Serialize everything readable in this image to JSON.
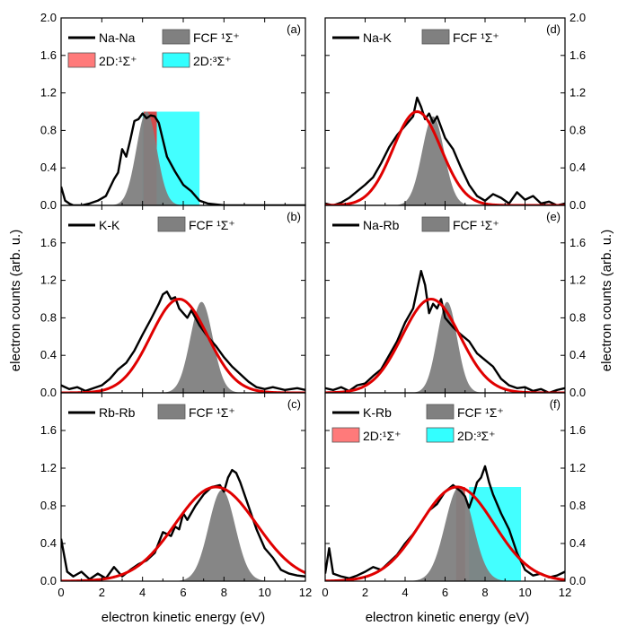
{
  "figure": {
    "xlabel": "electron kinetic energy (eV)",
    "ylabel": "electron counts (arb. u.)"
  },
  "chart_data": [
    {
      "type": "line",
      "panel_label": "(a)",
      "xlim": [
        0,
        12
      ],
      "ylim": [
        0,
        2.0
      ],
      "xticks": [
        "0",
        "2",
        "4",
        "6",
        "8",
        "10",
        "12"
      ],
      "yticks": [
        "0.0",
        "0.4",
        "0.8",
        "1.2",
        "1.6",
        "2.0"
      ],
      "ytick_side": "left",
      "legend": [
        {
          "name": "Na-Na",
          "style": "line",
          "color": "#000000"
        },
        {
          "name": "FCF ¹Σ⁺",
          "style": "box",
          "color": "#808080"
        },
        {
          "name": "2D:¹Σ⁺",
          "style": "box",
          "color": "#ff7a7a"
        },
        {
          "name": "2D:³Σ⁺",
          "style": "box",
          "color": "#33ffff"
        }
      ],
      "series": [
        {
          "name": "Na-Na",
          "kind": "line",
          "color": "#000000",
          "x": [
            0,
            0.2,
            0.4,
            0.6,
            1.0,
            1.4,
            1.8,
            2.2,
            2.6,
            2.8,
            3.0,
            3.2,
            3.4,
            3.6,
            3.8,
            4.0,
            4.2,
            4.4,
            4.6,
            4.8,
            5.0,
            5.2,
            5.6,
            6.0,
            6.4,
            6.8,
            7.2,
            8.0,
            9.0,
            10.0,
            11.0,
            12.0
          ],
          "y": [
            0.2,
            0.05,
            0.02,
            0.0,
            0.0,
            0.02,
            0.05,
            0.1,
            0.28,
            0.35,
            0.6,
            0.52,
            0.7,
            0.9,
            0.92,
            0.98,
            0.93,
            0.96,
            0.95,
            0.88,
            0.7,
            0.52,
            0.36,
            0.22,
            0.15,
            0.05,
            0.02,
            0.0,
            0.0,
            0.0,
            0.0,
            0.0
          ]
        },
        {
          "name": "FCF ¹Σ⁺",
          "kind": "gaussian_fill",
          "color": "#808080",
          "center": 4.2,
          "sigma": 0.5,
          "amplitude": 1.0
        },
        {
          "name": "2D:³Σ⁺",
          "kind": "band",
          "color": "#33ffff",
          "x0": 4.0,
          "x1": 6.8,
          "height": 1.0
        },
        {
          "name": "2D:¹Σ⁺",
          "kind": "band",
          "color": "#e03c3c",
          "x0": 4.05,
          "x1": 4.7,
          "height": 1.0
        }
      ]
    },
    {
      "type": "line",
      "panel_label": "(b)",
      "xlim": [
        0,
        12
      ],
      "ylim": [
        0,
        2.0
      ],
      "xticks": [
        "0",
        "2",
        "4",
        "6",
        "8",
        "10",
        "12"
      ],
      "yticks": [
        "0.0",
        "0.4",
        "0.8",
        "1.2",
        "1.6",
        ""
      ],
      "ytick_side": "left",
      "legend": [
        {
          "name": "K-K",
          "style": "line",
          "color": "#000000"
        },
        {
          "name": "FCF ¹Σ⁺",
          "style": "box",
          "color": "#808080"
        }
      ],
      "series": [
        {
          "name": "K-K",
          "kind": "line",
          "color": "#000000",
          "x": [
            0,
            0.4,
            0.8,
            1.2,
            1.6,
            2.0,
            2.4,
            2.8,
            3.2,
            3.6,
            4.0,
            4.4,
            4.8,
            5.0,
            5.2,
            5.4,
            5.6,
            5.8,
            6.0,
            6.2,
            6.4,
            6.8,
            7.2,
            7.6,
            8.0,
            8.4,
            8.8,
            9.2,
            9.6,
            10.0,
            10.4,
            11.0,
            11.6,
            12.0
          ],
          "y": [
            0.08,
            0.04,
            0.06,
            0.02,
            0.05,
            0.08,
            0.15,
            0.25,
            0.32,
            0.45,
            0.62,
            0.78,
            0.95,
            1.05,
            1.08,
            1.0,
            1.02,
            0.9,
            0.85,
            0.8,
            0.88,
            0.72,
            0.6,
            0.5,
            0.38,
            0.28,
            0.2,
            0.12,
            0.06,
            0.04,
            0.06,
            0.03,
            0.05,
            0.03
          ]
        },
        {
          "name": "fit",
          "kind": "gaussian_line",
          "color": "#e00000",
          "center": 5.8,
          "sigma": 1.4,
          "amplitude": 1.0
        },
        {
          "name": "FCF ¹Σ⁺",
          "kind": "gaussian_fill",
          "color": "#808080",
          "center": 6.9,
          "sigma": 0.55,
          "amplitude": 0.97
        }
      ]
    },
    {
      "type": "line",
      "panel_label": "(c)",
      "xlim": [
        0,
        12
      ],
      "ylim": [
        0,
        2.0
      ],
      "xticks": [
        "0",
        "2",
        "4",
        "6",
        "8",
        "10",
        "12"
      ],
      "yticks": [
        "0.0",
        "0.4",
        "0.8",
        "1.2",
        "1.6",
        ""
      ],
      "ytick_side": "left",
      "legend": [
        {
          "name": "Rb-Rb",
          "style": "line",
          "color": "#000000"
        },
        {
          "name": "FCF ¹Σ⁺",
          "style": "box",
          "color": "#808080"
        }
      ],
      "series": [
        {
          "name": "Rb-Rb",
          "kind": "line",
          "color": "#000000",
          "x": [
            0,
            0.3,
            0.6,
            1.0,
            1.4,
            1.8,
            2.2,
            2.6,
            3.0,
            3.4,
            3.8,
            4.2,
            4.6,
            5.0,
            5.2,
            5.4,
            5.6,
            5.8,
            6.0,
            6.2,
            6.6,
            7.0,
            7.4,
            7.8,
            8.0,
            8.2,
            8.4,
            8.6,
            8.8,
            9.2,
            9.6,
            10.0,
            10.4,
            10.8,
            11.2,
            11.6,
            12.0
          ],
          "y": [
            0.45,
            0.1,
            0.05,
            0.1,
            0.02,
            0.08,
            0.03,
            0.15,
            0.05,
            0.12,
            0.18,
            0.22,
            0.3,
            0.52,
            0.5,
            0.48,
            0.58,
            0.55,
            0.72,
            0.65,
            0.8,
            0.92,
            1.0,
            1.02,
            0.95,
            1.1,
            1.18,
            1.15,
            1.05,
            0.8,
            0.55,
            0.35,
            0.25,
            0.12,
            0.08,
            0.06,
            0.05
          ]
        },
        {
          "name": "fit",
          "kind": "gaussian_line",
          "color": "#e00000",
          "center": 7.6,
          "sigma": 2.0,
          "amplitude": 1.0
        },
        {
          "name": "FCF ¹Σ⁺",
          "kind": "gaussian_fill",
          "color": "#808080",
          "center": 7.9,
          "sigma": 0.65,
          "amplitude": 0.97
        }
      ]
    },
    {
      "type": "line",
      "panel_label": "(d)",
      "xlim": [
        0,
        12
      ],
      "ylim": [
        0,
        2.0
      ],
      "xticks": [
        "0",
        "2",
        "4",
        "6",
        "8",
        "10",
        "12"
      ],
      "yticks": [
        "0.0",
        "0.4",
        "0.8",
        "1.2",
        "1.6",
        "2.0"
      ],
      "ytick_side": "right",
      "legend": [
        {
          "name": "Na-K",
          "style": "line",
          "color": "#000000"
        },
        {
          "name": "FCF ¹Σ⁺",
          "style": "box",
          "color": "#808080"
        }
      ],
      "series": [
        {
          "name": "Na-K",
          "kind": "line",
          "color": "#000000",
          "x": [
            0,
            0.4,
            0.8,
            1.2,
            1.6,
            2.0,
            2.4,
            2.8,
            3.2,
            3.6,
            4.0,
            4.4,
            4.6,
            4.8,
            5.0,
            5.2,
            5.4,
            5.6,
            6.0,
            6.4,
            6.8,
            7.2,
            7.6,
            8.0,
            8.4,
            8.8,
            9.2,
            9.6,
            10.0,
            10.4,
            10.8,
            11.2,
            11.6,
            12.0
          ],
          "y": [
            0.02,
            0.0,
            0.03,
            0.08,
            0.15,
            0.22,
            0.3,
            0.45,
            0.62,
            0.75,
            0.85,
            0.95,
            1.15,
            1.05,
            0.92,
            0.98,
            0.88,
            0.95,
            0.72,
            0.6,
            0.4,
            0.22,
            0.1,
            0.05,
            0.12,
            0.08,
            0.02,
            0.14,
            0.06,
            0.1,
            0.02,
            0.04,
            0.0,
            0.02
          ]
        },
        {
          "name": "fit",
          "kind": "gaussian_line",
          "color": "#e00000",
          "center": 4.6,
          "sigma": 1.2,
          "amplitude": 1.0
        },
        {
          "name": "FCF ¹Σ⁺",
          "kind": "gaussian_fill",
          "color": "#808080",
          "center": 5.4,
          "sigma": 0.55,
          "amplitude": 0.95
        }
      ]
    },
    {
      "type": "line",
      "panel_label": "(e)",
      "xlim": [
        0,
        12
      ],
      "ylim": [
        0,
        2.0
      ],
      "xticks": [
        "0",
        "2",
        "4",
        "6",
        "8",
        "10",
        "12"
      ],
      "yticks": [
        "0.0",
        "0.4",
        "0.8",
        "1.2",
        "1.6",
        ""
      ],
      "ytick_side": "right",
      "legend": [
        {
          "name": "Na-Rb",
          "style": "line",
          "color": "#000000"
        },
        {
          "name": "FCF ¹Σ⁺",
          "style": "box",
          "color": "#808080"
        }
      ],
      "series": [
        {
          "name": "Na-Rb",
          "kind": "line",
          "color": "#000000",
          "x": [
            0,
            0.4,
            0.8,
            1.2,
            1.6,
            2.0,
            2.4,
            2.8,
            3.2,
            3.6,
            4.0,
            4.4,
            4.6,
            4.8,
            5.0,
            5.2,
            5.4,
            5.6,
            5.8,
            6.0,
            6.4,
            6.8,
            7.2,
            7.6,
            8.0,
            8.4,
            8.8,
            9.2,
            9.6,
            10.0,
            10.4,
            10.8,
            11.2,
            11.6,
            12.0
          ],
          "y": [
            0.05,
            0.03,
            0.06,
            0.02,
            0.08,
            0.1,
            0.18,
            0.25,
            0.4,
            0.55,
            0.75,
            0.9,
            1.1,
            1.3,
            1.15,
            0.85,
            0.95,
            0.9,
            1.0,
            0.8,
            0.7,
            0.62,
            0.55,
            0.42,
            0.35,
            0.28,
            0.15,
            0.08,
            0.05,
            0.06,
            0.02,
            0.04,
            0.0,
            0.03,
            0.05
          ]
        },
        {
          "name": "fit",
          "kind": "gaussian_line",
          "color": "#e00000",
          "center": 5.3,
          "sigma": 1.45,
          "amplitude": 1.0
        },
        {
          "name": "FCF ¹Σ⁺",
          "kind": "gaussian_fill",
          "color": "#808080",
          "center": 6.1,
          "sigma": 0.5,
          "amplitude": 0.97
        }
      ]
    },
    {
      "type": "line",
      "panel_label": "(f)",
      "xlim": [
        0,
        12
      ],
      "ylim": [
        0,
        2.0
      ],
      "xticks": [
        "0",
        "2",
        "4",
        "6",
        "8",
        "10",
        "12"
      ],
      "yticks": [
        "0.0",
        "0.4",
        "0.8",
        "1.2",
        "1.6",
        ""
      ],
      "ytick_side": "right",
      "legend": [
        {
          "name": "K-Rb",
          "style": "line",
          "color": "#000000"
        },
        {
          "name": "FCF ¹Σ⁺",
          "style": "box",
          "color": "#808080"
        },
        {
          "name": "2D:¹Σ⁺",
          "style": "box",
          "color": "#ff7a7a"
        },
        {
          "name": "2D:³Σ⁺",
          "style": "box",
          "color": "#33ffff"
        }
      ],
      "series": [
        {
          "name": "K-Rb",
          "kind": "line",
          "color": "#000000",
          "x": [
            0,
            0.2,
            0.4,
            0.8,
            1.2,
            1.6,
            2.0,
            2.4,
            2.8,
            3.2,
            3.6,
            4.0,
            4.4,
            4.8,
            5.2,
            5.6,
            6.0,
            6.4,
            6.8,
            7.0,
            7.2,
            7.4,
            7.6,
            7.8,
            8.0,
            8.2,
            8.4,
            8.8,
            9.2,
            9.6,
            10.0,
            10.4,
            10.8,
            11.2,
            11.6,
            12.0
          ],
          "y": [
            0.08,
            0.35,
            0.08,
            0.05,
            0.03,
            0.06,
            0.1,
            0.15,
            0.12,
            0.2,
            0.28,
            0.4,
            0.5,
            0.62,
            0.75,
            0.82,
            0.95,
            1.02,
            0.95,
            0.9,
            0.78,
            0.9,
            1.05,
            1.1,
            1.22,
            1.05,
            0.92,
            0.72,
            0.55,
            0.3,
            0.12,
            0.06,
            0.08,
            0.04,
            0.06,
            0.1
          ]
        },
        {
          "name": "fit",
          "kind": "gaussian_line",
          "color": "#e00000",
          "center": 6.6,
          "sigma": 1.85,
          "amplitude": 1.0
        },
        {
          "name": "FCF ¹Σ⁺",
          "kind": "gaussian_fill",
          "color": "#808080",
          "center": 6.7,
          "sigma": 0.7,
          "amplitude": 1.0
        },
        {
          "name": "2D:³Σ⁺",
          "kind": "band",
          "color": "#33ffff",
          "x0": 7.2,
          "x1": 9.8,
          "height": 1.0
        },
        {
          "name": "2D:¹Σ⁺",
          "kind": "band",
          "color": "#e03c3c",
          "x0": 6.55,
          "x1": 7.0,
          "height": 1.0
        }
      ]
    }
  ]
}
